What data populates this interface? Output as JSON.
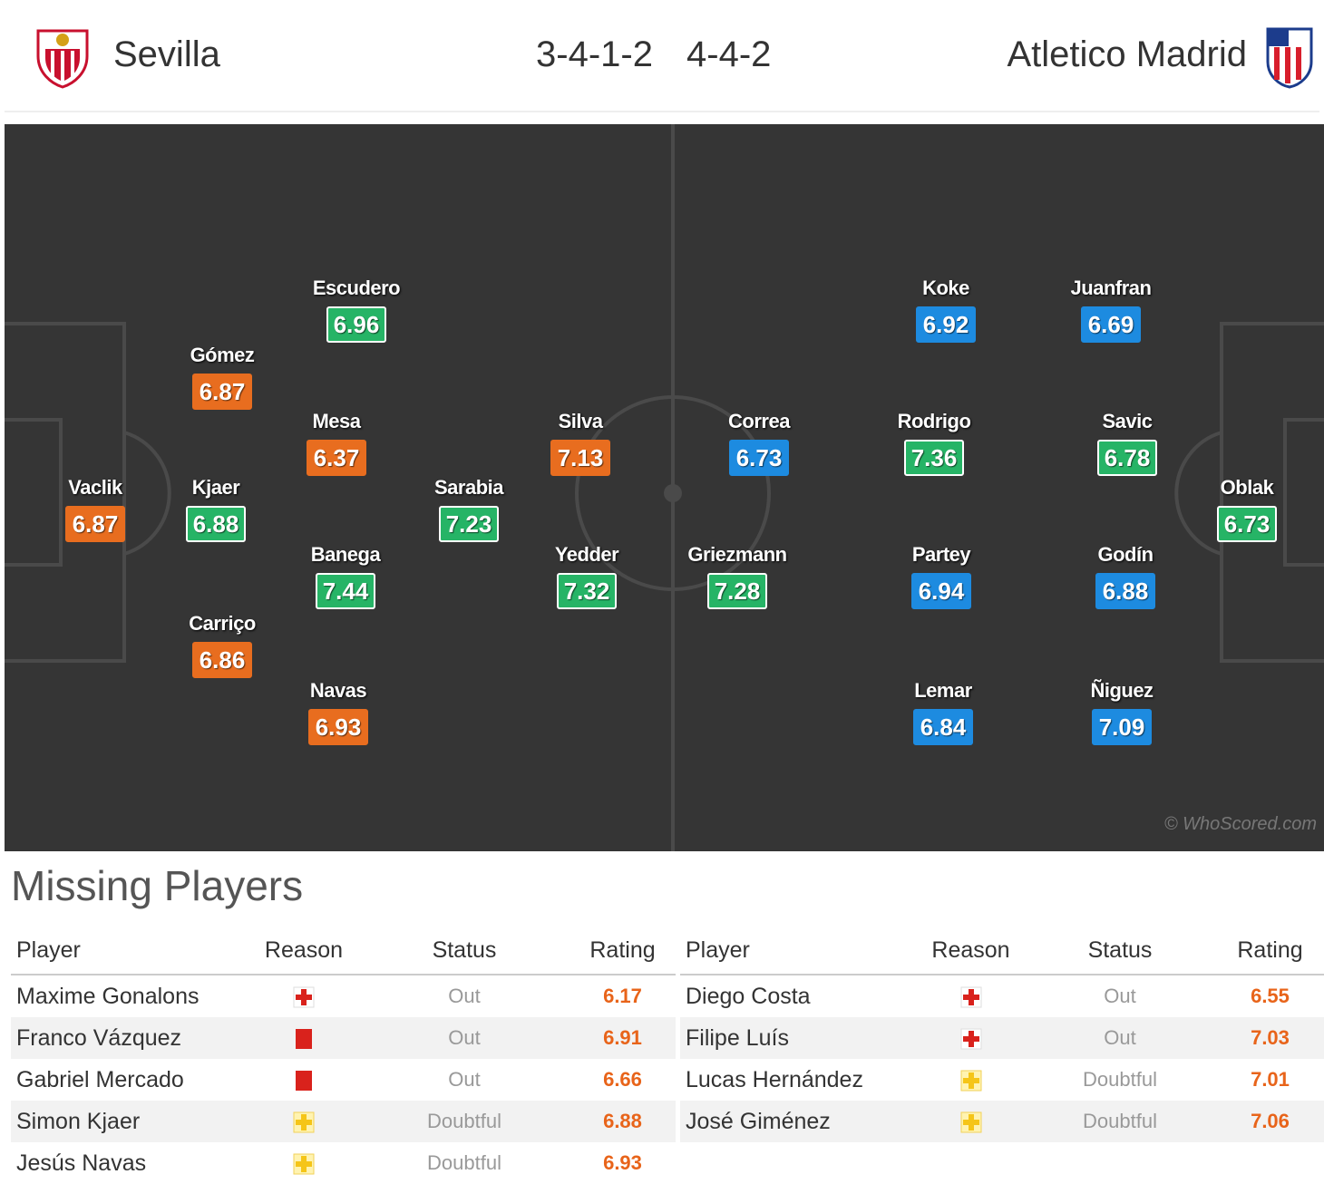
{
  "header": {
    "home_team": "Sevilla",
    "home_formation": "3-4-1-2",
    "away_formation": "4-4-2",
    "away_team": "Atletico Madrid"
  },
  "pitch": {
    "home_players": [
      {
        "name": "Vaclik",
        "rating": "6.87",
        "color": "orange"
      },
      {
        "name": "Gómez",
        "rating": "6.87",
        "color": "orange"
      },
      {
        "name": "Kjaer",
        "rating": "6.88",
        "color": "green"
      },
      {
        "name": "Carriço",
        "rating": "6.86",
        "color": "orange"
      },
      {
        "name": "Escudero",
        "rating": "6.96",
        "color": "green"
      },
      {
        "name": "Mesa",
        "rating": "6.37",
        "color": "orange"
      },
      {
        "name": "Banega",
        "rating": "7.44",
        "color": "green"
      },
      {
        "name": "Navas",
        "rating": "6.93",
        "color": "orange"
      },
      {
        "name": "Sarabia",
        "rating": "7.23",
        "color": "green"
      },
      {
        "name": "Silva",
        "rating": "7.13",
        "color": "orange"
      },
      {
        "name": "Yedder",
        "rating": "7.32",
        "color": "green"
      }
    ],
    "away_players": [
      {
        "name": "Correa",
        "rating": "6.73",
        "color": "blue"
      },
      {
        "name": "Griezmann",
        "rating": "7.28",
        "color": "green"
      },
      {
        "name": "Koke",
        "rating": "6.92",
        "color": "blue"
      },
      {
        "name": "Rodrigo",
        "rating": "7.36",
        "color": "green"
      },
      {
        "name": "Partey",
        "rating": "6.94",
        "color": "blue"
      },
      {
        "name": "Lemar",
        "rating": "6.84",
        "color": "blue"
      },
      {
        "name": "Juanfran",
        "rating": "6.69",
        "color": "blue"
      },
      {
        "name": "Savic",
        "rating": "6.78",
        "color": "green"
      },
      {
        "name": "Godín",
        "rating": "6.88",
        "color": "blue"
      },
      {
        "name": "Ñiguez",
        "rating": "7.09",
        "color": "blue"
      },
      {
        "name": "Oblak",
        "rating": "6.73",
        "color": "green"
      }
    ],
    "watermark": "© WhoScored.com"
  },
  "missing": {
    "title": "Missing Players",
    "columns": [
      "Player",
      "Reason",
      "Status",
      "Rating"
    ],
    "home": [
      {
        "player": "Maxime Gonalons",
        "reason": "injury-icon",
        "status": "Out",
        "rating": "6.17"
      },
      {
        "player": "Franco Vázquez",
        "reason": "red-card-icon",
        "status": "Out",
        "rating": "6.91"
      },
      {
        "player": "Gabriel Mercado",
        "reason": "red-card-icon",
        "status": "Out",
        "rating": "6.66"
      },
      {
        "player": "Simon Kjaer",
        "reason": "doubtful-icon",
        "status": "Doubtful",
        "rating": "6.88"
      },
      {
        "player": "Jesús Navas",
        "reason": "doubtful-icon",
        "status": "Doubtful",
        "rating": "6.93"
      }
    ],
    "away": [
      {
        "player": "Diego Costa",
        "reason": "injury-icon",
        "status": "Out",
        "rating": "6.55"
      },
      {
        "player": "Filipe Luís",
        "reason": "injury-icon",
        "status": "Out",
        "rating": "7.03"
      },
      {
        "player": "Lucas Hernández",
        "reason": "doubtful-icon",
        "status": "Doubtful",
        "rating": "7.01"
      },
      {
        "player": "José Giménez",
        "reason": "doubtful-icon",
        "status": "Doubtful",
        "rating": "7.06"
      }
    ]
  },
  "colors": {
    "pitch": "#353535",
    "orange": "#e86d1f",
    "green": "#26b466",
    "blue": "#1d8be0",
    "rating_text": "#e8641a"
  }
}
